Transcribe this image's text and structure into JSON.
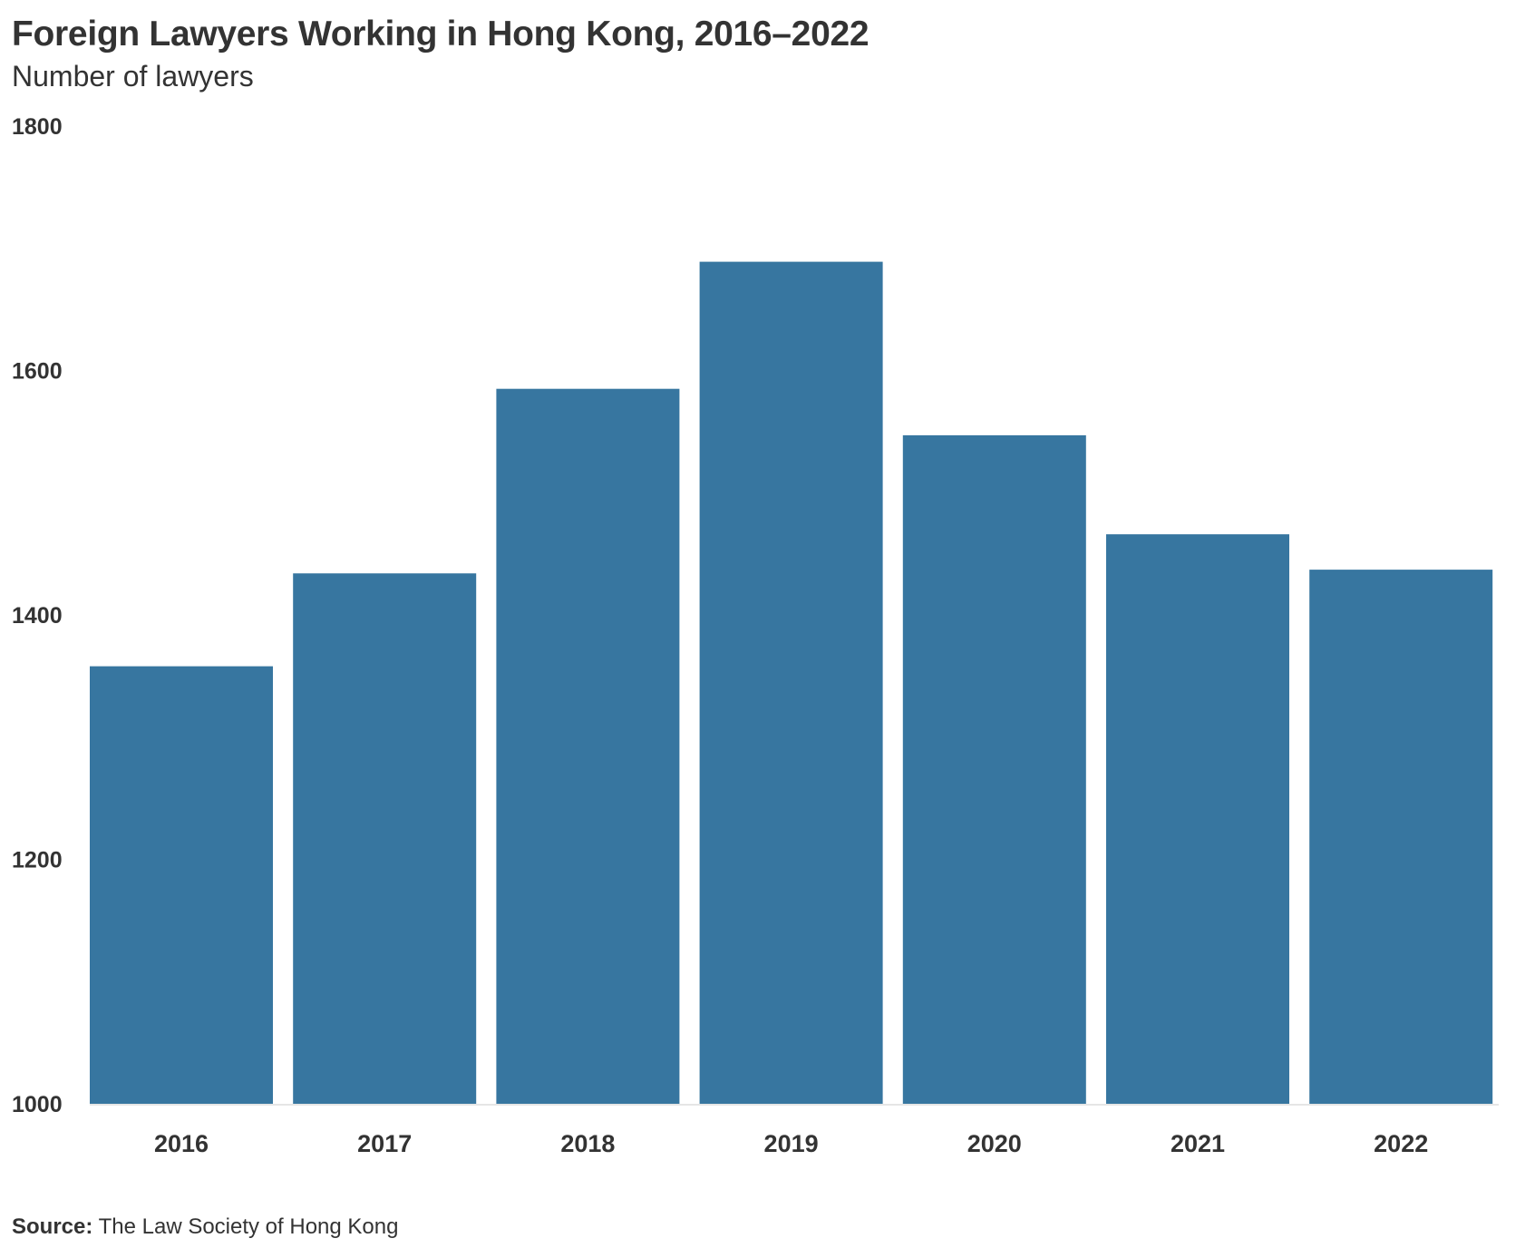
{
  "header": {
    "title": "Foreign Lawyers Working in Hong Kong, 2016–2022",
    "subtitle": "Number of lawyers"
  },
  "footer": {
    "source_label": "Source:",
    "source_text": " The Law Society of Hong Kong"
  },
  "colors": {
    "bar": "#3776a0",
    "axis": "#e6e6e6",
    "text": "#333333"
  },
  "chart_data": {
    "type": "bar",
    "title": "Foreign Lawyers Working in Hong Kong, 2016–2022",
    "subtitle": "Number of lawyers",
    "xlabel": "",
    "ylabel": "",
    "categories": [
      "2016",
      "2017",
      "2018",
      "2019",
      "2020",
      "2021",
      "2022"
    ],
    "values": [
      1358,
      1434,
      1585,
      1689,
      1547,
      1466,
      1437
    ],
    "ylim": [
      1000,
      1800
    ],
    "yticks": [
      1000,
      1200,
      1400,
      1600,
      1800
    ],
    "grid": false,
    "legend": "none"
  }
}
